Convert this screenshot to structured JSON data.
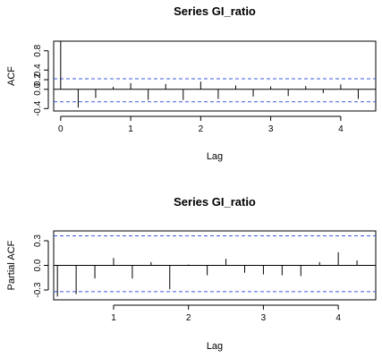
{
  "chart_data": [
    {
      "type": "bar",
      "title": "Series  GI_ratio",
      "xlabel": "Lag",
      "ylabel": "ACF",
      "x_ticks": [
        0,
        1,
        2,
        3,
        4
      ],
      "y_ticks": [
        -0.4,
        0.0,
        0.2,
        0.4,
        0.8
      ],
      "y_tick_labels": [
        "-0.4",
        "0.0",
        "0.2",
        "0.4",
        "0.8"
      ],
      "xlim": [
        -0.1,
        4.5
      ],
      "ylim": [
        -0.45,
        1.0
      ],
      "confidence_band": [
        0.22,
        -0.26
      ],
      "lags": [
        0,
        0.25,
        0.5,
        0.75,
        1.0,
        1.25,
        1.5,
        1.75,
        2.0,
        2.25,
        2.5,
        2.75,
        3.0,
        3.25,
        3.5,
        3.75,
        4.0,
        4.25
      ],
      "values": [
        1.0,
        -0.38,
        -0.18,
        0.05,
        0.13,
        -0.22,
        0.11,
        -0.22,
        0.16,
        -0.2,
        0.08,
        -0.15,
        0.06,
        -0.14,
        0.07,
        -0.08,
        0.1,
        -0.2
      ]
    },
    {
      "type": "bar",
      "title": "Series  GI_ratio",
      "xlabel": "Lag",
      "ylabel": "Partial ACF",
      "x_ticks": [
        1,
        2,
        3,
        4
      ],
      "y_ticks": [
        -0.3,
        0.0,
        0.3
      ],
      "y_tick_labels": [
        "-0.3",
        "0.0",
        "0.3"
      ],
      "xlim": [
        0.2,
        4.5
      ],
      "ylim": [
        -0.42,
        0.42
      ],
      "confidence_band": [
        0.36,
        -0.32
      ],
      "lags": [
        0.25,
        0.5,
        0.75,
        1.0,
        1.25,
        1.5,
        1.75,
        2.0,
        2.25,
        2.5,
        2.75,
        3.0,
        3.25,
        3.5,
        3.75,
        4.0,
        4.25,
        4.5
      ],
      "values": [
        -0.38,
        -0.35,
        -0.16,
        0.09,
        -0.16,
        0.04,
        -0.29,
        0.01,
        -0.12,
        0.08,
        -0.09,
        -0.11,
        -0.12,
        -0.13,
        0.04,
        0.16,
        0.06,
        -0.2
      ]
    }
  ]
}
